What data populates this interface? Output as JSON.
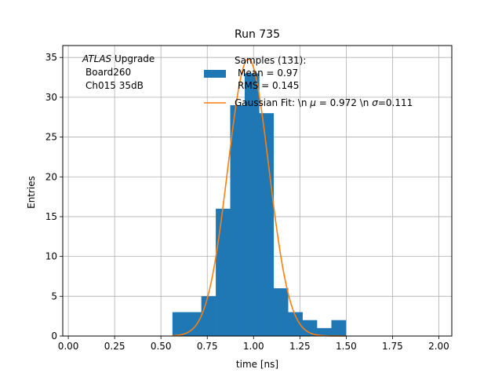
{
  "chart_data": {
    "type": "bar",
    "title": "Run 735",
    "xlabel": "time [ns]",
    "ylabel": "Entries",
    "xlim": [
      -0.03,
      2.07
    ],
    "ylim": [
      0,
      36.5
    ],
    "grid": true,
    "xticks": [
      0.0,
      0.25,
      0.5,
      0.75,
      1.0,
      1.25,
      1.5,
      1.75,
      2.0
    ],
    "xtick_labels": [
      "0.00",
      "0.25",
      "0.50",
      "0.75",
      "1.00",
      "1.25",
      "1.50",
      "1.75",
      "2.00"
    ],
    "yticks": [
      0,
      5,
      10,
      15,
      20,
      25,
      30,
      35
    ],
    "ytick_labels": [
      "0",
      "5",
      "10",
      "15",
      "20",
      "25",
      "30",
      "35"
    ],
    "annotation": {
      "italic": "ATLAS",
      "line1_rest": " Upgrade",
      "line2": "Board260",
      "line3": "Ch015 35dB"
    },
    "legend": {
      "placement": "top-center",
      "hist_label_lines": [
        "Samples (131):",
        "Mean = 0.97",
        "RMS = 0.145"
      ],
      "fit_label_prefix": "Gaussian Fit: \\n ",
      "fit_label_mu": "μ",
      "fit_label_mid": " = 0.972 \\n ",
      "fit_label_sigma": "σ",
      "fit_label_suffix": "=0.111"
    },
    "histogram": {
      "name": "Samples (131)",
      "color": "#1f77b4",
      "bin_edges": [
        0.562,
        0.64,
        0.718,
        0.796,
        0.874,
        0.952,
        1.03,
        1.108,
        1.186,
        1.264,
        1.342,
        1.42,
        1.498
      ],
      "counts": [
        3,
        3,
        5,
        16,
        29,
        33,
        28,
        6,
        3,
        2,
        1,
        2
      ]
    },
    "fit": {
      "name": "Gaussian Fit",
      "color": "#ff7f0e",
      "mu": 0.972,
      "sigma": 0.111,
      "amplitude": 34.8,
      "x_range": [
        0.562,
        1.498
      ]
    }
  }
}
